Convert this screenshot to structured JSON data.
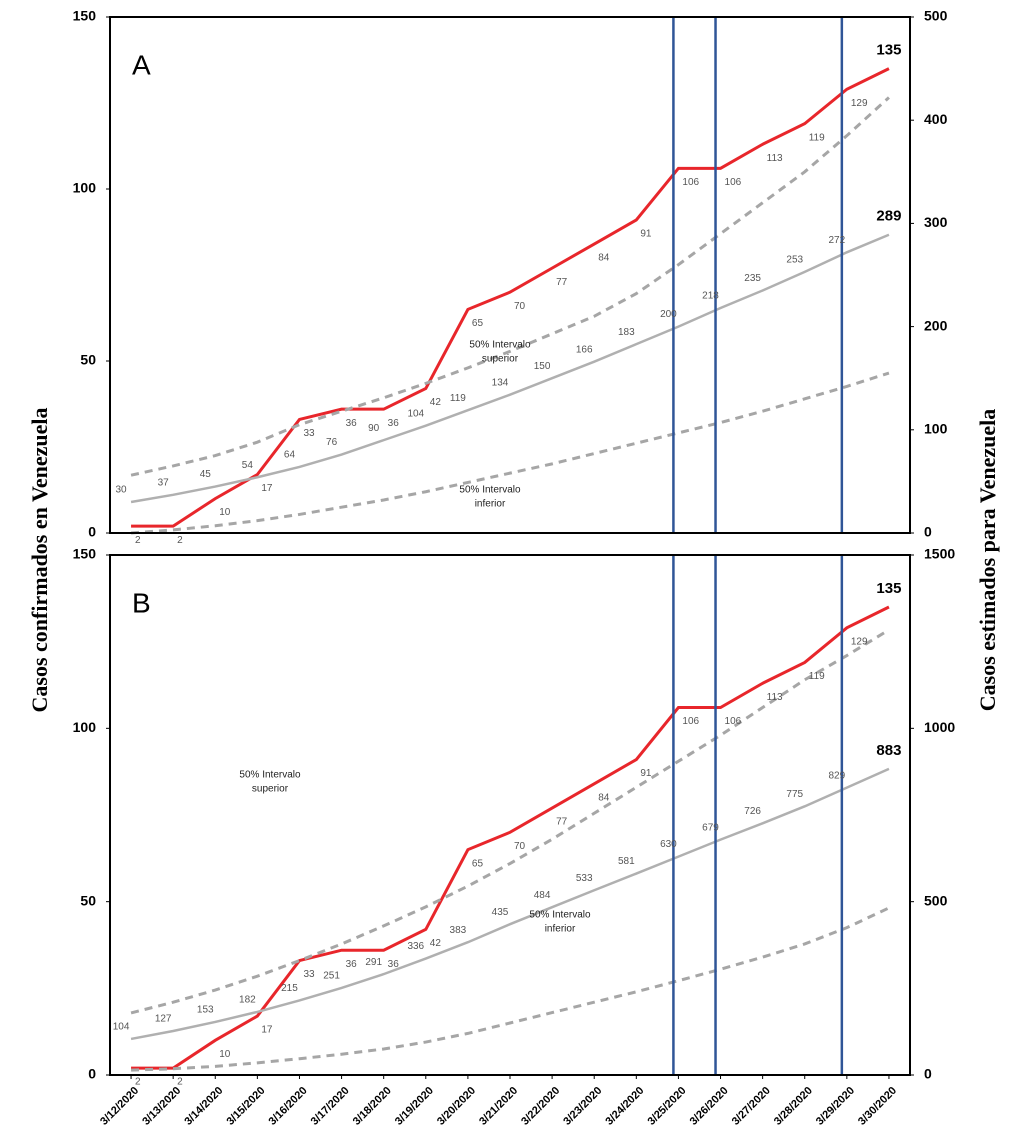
{
  "ylabel": "Casos confirmados en Venezuela",
  "y2label": "Casos estimados para Venezuela",
  "chart_data": [
    {
      "type": "line",
      "label": "A",
      "ylim": [
        0,
        150
      ],
      "yticks": [
        0,
        50,
        100,
        150
      ],
      "y2lim": [
        0,
        500
      ],
      "y2ticks": [
        0,
        100,
        200,
        300,
        400,
        500
      ],
      "vlines": [
        "3/25/2020",
        "3/26/2020",
        "3/29/2020"
      ],
      "vline_color": "#2f5597",
      "annotations": [
        [
          "50% Intervalo",
          "superior"
        ],
        [
          "50% Intervalo",
          "inferior"
        ]
      ],
      "series": [
        {
          "color": "#e8262b",
          "labels": true,
          "values": [
            2,
            2,
            10,
            17,
            33,
            36,
            36,
            42,
            65,
            70,
            77,
            84,
            91,
            106,
            106,
            113,
            119,
            129,
            135
          ]
        },
        {
          "color": "#b0b0b0",
          "axis": "y2",
          "labels": true,
          "values": [
            30,
            37,
            45,
            54,
            64,
            76,
            90,
            104,
            119,
            134,
            150,
            166,
            183,
            200,
            218,
            235,
            253,
            272,
            289
          ]
        },
        {
          "color": "#a6a6a6",
          "axis": "y2",
          "dashed": true,
          "values": [
            56,
            65,
            75,
            88,
            105,
            118,
            131,
            145,
            160,
            176,
            193,
            210,
            232,
            260,
            290,
            320,
            350,
            385,
            422
          ]
        },
        {
          "color": "#a6a6a6",
          "axis": "y2",
          "dashed": true,
          "values": [
            0,
            3,
            7,
            12,
            18,
            25,
            32,
            40,
            49,
            58,
            67,
            77,
            87,
            97,
            107,
            118,
            130,
            142,
            155
          ]
        }
      ]
    },
    {
      "type": "line",
      "label": "B",
      "categories": [
        "3/12/2020",
        "3/13/2020",
        "3/14/2020",
        "3/15/2020",
        "3/16/2020",
        "3/17/2020",
        "3/18/2020",
        "3/19/2020",
        "3/20/2020",
        "3/21/2020",
        "3/22/2020",
        "3/23/2020",
        "3/24/2020",
        "3/25/2020",
        "3/26/2020",
        "3/27/2020",
        "3/28/2020",
        "3/29/2020",
        "3/30/2020"
      ],
      "ylim": [
        0,
        150
      ],
      "yticks": [
        0,
        50,
        100,
        150
      ],
      "y2lim": [
        0,
        1500
      ],
      "y2ticks": [
        0,
        500,
        1000,
        1500
      ],
      "vlines": [
        "3/25/2020",
        "3/26/2020",
        "3/29/2020"
      ],
      "vline_color": "#2f5597",
      "annotations": [
        [
          "50% Intervalo",
          "superior"
        ],
        [
          "50% Intervalo",
          "inferior"
        ]
      ],
      "series": [
        {
          "color": "#e8262b",
          "labels": true,
          "values": [
            2,
            2,
            10,
            17,
            33,
            36,
            36,
            42,
            65,
            70,
            77,
            84,
            91,
            106,
            106,
            113,
            119,
            129,
            135
          ]
        },
        {
          "color": "#b0b0b0",
          "axis": "y2",
          "labels": true,
          "values": [
            104,
            127,
            153,
            182,
            215,
            251,
            291,
            336,
            383,
            435,
            484,
            533,
            581,
            630,
            679,
            726,
            775,
            829,
            883
          ]
        },
        {
          "color": "#a6a6a6",
          "axis": "y2",
          "dashed": true,
          "values": [
            179,
            210,
            245,
            285,
            330,
            378,
            430,
            485,
            545,
            610,
            680,
            755,
            830,
            905,
            980,
            1060,
            1140,
            1210,
            1284
          ]
        },
        {
          "color": "#a6a6a6",
          "axis": "y2",
          "dashed": true,
          "values": [
            14,
            18,
            25,
            35,
            47,
            60,
            75,
            95,
            120,
            150,
            180,
            210,
            240,
            272,
            305,
            340,
            378,
            425,
            482
          ]
        }
      ]
    }
  ]
}
